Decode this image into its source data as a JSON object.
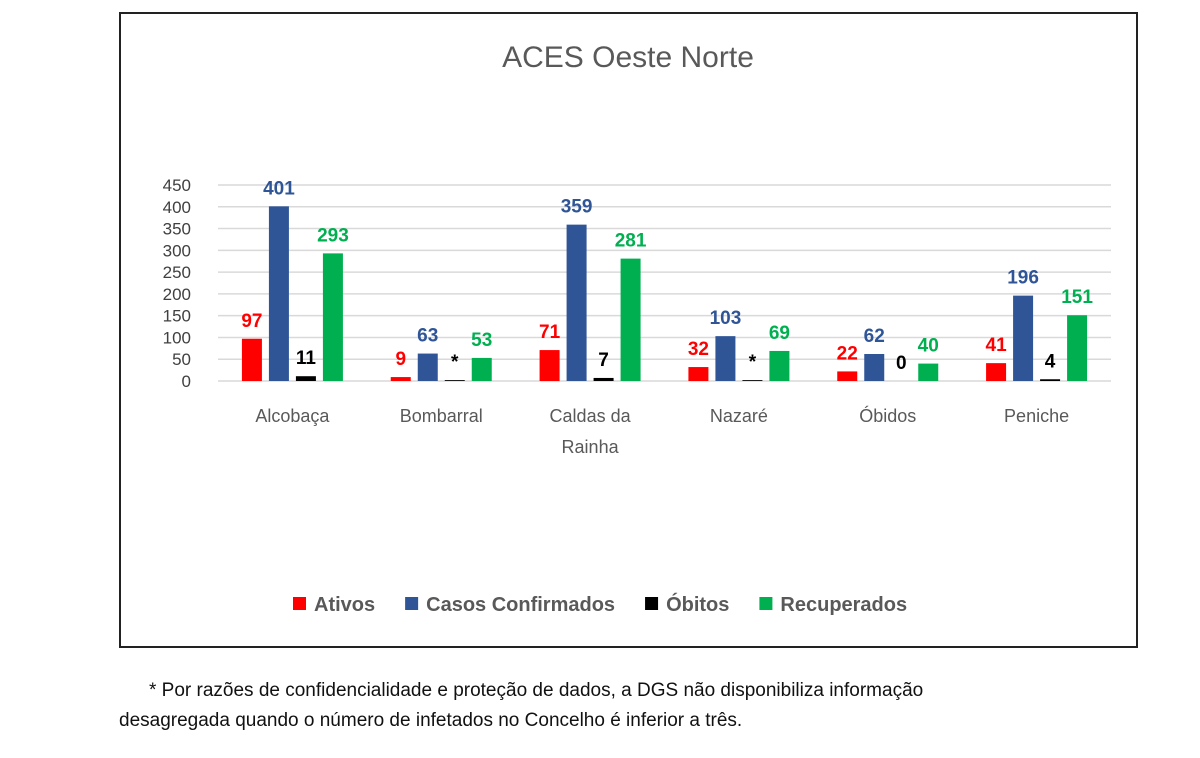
{
  "chart_data": {
    "type": "bar",
    "title": "ACES Oeste Norte",
    "xlabel": "",
    "ylabel": "",
    "ylim": [
      0,
      450
    ],
    "yticks": [
      0,
      50,
      100,
      150,
      200,
      250,
      300,
      350,
      400,
      450
    ],
    "grid": true,
    "legend_position": "bottom",
    "categories": [
      [
        "Alcobaça"
      ],
      [
        "Bombarral"
      ],
      [
        "Caldas da",
        "Rainha"
      ],
      [
        "Nazaré"
      ],
      [
        "Óbidos"
      ],
      [
        "Peniche"
      ]
    ],
    "series": [
      {
        "name": "Ativos",
        "color": "#ff0000",
        "values": [
          97,
          9,
          71,
          32,
          22,
          41
        ],
        "labels": [
          "97",
          "9",
          "71",
          "32",
          "22",
          "41"
        ]
      },
      {
        "name": "Casos Confirmados",
        "color": "#2f5597",
        "values": [
          401,
          63,
          359,
          103,
          62,
          196
        ],
        "labels": [
          "401",
          "63",
          "359",
          "103",
          "62",
          "196"
        ]
      },
      {
        "name": "Óbitos",
        "color": "#000000",
        "values": [
          11,
          2,
          7,
          2,
          0,
          4
        ],
        "labels": [
          "11",
          "*",
          "7",
          "*",
          "0",
          "4"
        ]
      },
      {
        "name": "Recuperados",
        "color": "#00b050",
        "values": [
          293,
          53,
          281,
          69,
          40,
          151
        ],
        "labels": [
          "293",
          "53",
          "281",
          "69",
          "40",
          "151"
        ]
      }
    ]
  },
  "footnote": {
    "line1": "* Por razões de confidencialidade e proteção de dados, a DGS não disponibiliza informação",
    "line2": "desagregada quando o número de infetados no Concelho é inferior a três."
  }
}
